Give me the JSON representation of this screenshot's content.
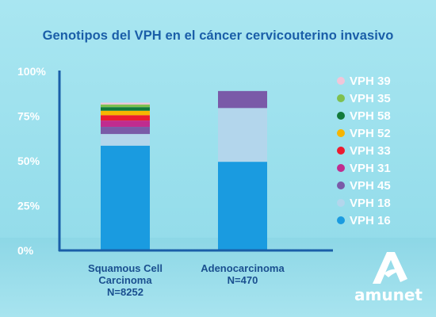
{
  "chart_data": {
    "type": "bar",
    "stacked": true,
    "title": "Genotipos del VPH en el cáncer cervicouterino invasivo",
    "categories": [
      [
        "Squamous Cell",
        "Carcinoma",
        "N=8252"
      ],
      [
        "Adenocarcinoma",
        "N=470"
      ]
    ],
    "ylim": [
      0,
      100
    ],
    "yticks": [
      {
        "value": 0,
        "label": "0%"
      },
      {
        "value": 25,
        "label": "25%"
      },
      {
        "value": 50,
        "label": "50%"
      },
      {
        "value": 75,
        "label": "75%"
      },
      {
        "value": 100,
        "label": "100%"
      }
    ],
    "series": [
      {
        "name": "VPH 16",
        "color": "#1a9be0",
        "values": [
          58.5,
          49.5
        ]
      },
      {
        "name": "VPH 18",
        "color": "#b3d6ec",
        "values": [
          6.5,
          30
        ]
      },
      {
        "name": "VPH 45",
        "color": "#7a5aa8",
        "values": [
          4,
          9.5
        ]
      },
      {
        "name": "VPH 31",
        "color": "#c02c8f",
        "values": [
          3.5,
          0
        ]
      },
      {
        "name": "VPH 33",
        "color": "#ec1b30",
        "values": [
          3,
          0
        ]
      },
      {
        "name": "VPH 52",
        "color": "#f7b500",
        "values": [
          2.5,
          0
        ]
      },
      {
        "name": "VPH 58",
        "color": "#127a3a",
        "values": [
          2,
          0
        ]
      },
      {
        "name": "VPH 35",
        "color": "#7fc04e",
        "values": [
          1.5,
          0
        ]
      },
      {
        "name": "VPH 39",
        "color": "#f1c6d9",
        "values": [
          1,
          0
        ]
      }
    ],
    "legend_position": "right",
    "legend_order": [
      "VPH 39",
      "VPH 35",
      "VPH 58",
      "VPH 52",
      "VPH 33",
      "VPH 31",
      "VPH 45",
      "VPH 18",
      "VPH 16"
    ],
    "grid": false,
    "axis_color": "#1a5ea8"
  },
  "logo": {
    "text": "amunet"
  }
}
